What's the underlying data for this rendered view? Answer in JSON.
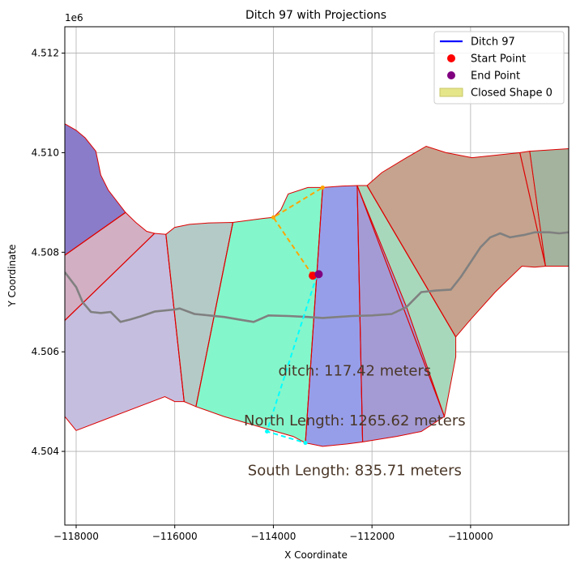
{
  "chart_data": {
    "type": "map",
    "title": "Ditch 97 with Projections",
    "xlabel": "X Coordinate",
    "ylabel": "Y Coordinate",
    "y_offset_label": "1e6",
    "xlim": [
      -118230,
      -108010
    ],
    "ylim": [
      4502520,
      4512530
    ],
    "x_ticks": [
      {
        "value": -118000,
        "label": "−118000"
      },
      {
        "value": -116000,
        "label": "−116000"
      },
      {
        "value": -114000,
        "label": "−114000"
      },
      {
        "value": -112000,
        "label": "−112000"
      },
      {
        "value": -110000,
        "label": "−110000"
      }
    ],
    "y_ticks": [
      {
        "value": 4504000,
        "label": "4.504"
      },
      {
        "value": 4506000,
        "label": "4.506"
      },
      {
        "value": 4508000,
        "label": "4.508"
      },
      {
        "value": 4510000,
        "label": "4.510"
      },
      {
        "value": 4512000,
        "label": "4.512"
      }
    ],
    "grid": true,
    "legend_position": "top-right",
    "legend": [
      {
        "label": "Ditch 97",
        "kind": "line",
        "color": "#0000ff"
      },
      {
        "label": "Start Point",
        "kind": "point",
        "color": "#ff0000"
      },
      {
        "label": "End Point",
        "kind": "point",
        "color": "#800080"
      },
      {
        "label": "Closed Shape 0",
        "kind": "patch",
        "color": "#e5e58a"
      }
    ],
    "regions": [
      {
        "color": "#8a7cc8",
        "points": [
          [
            -118230,
            4510580
          ],
          [
            -118000,
            4510450
          ],
          [
            -117820,
            4510300
          ],
          [
            -117600,
            4510030
          ],
          [
            -117500,
            4509550
          ],
          [
            -117350,
            4509250
          ],
          [
            -117000,
            4508800
          ],
          [
            -118230,
            4507940
          ]
        ]
      },
      {
        "color": "#d2afc3",
        "points": [
          [
            -118230,
            4507940
          ],
          [
            -117000,
            4508800
          ],
          [
            -116790,
            4508600
          ],
          [
            -116570,
            4508420
          ],
          [
            -116410,
            4508380
          ],
          [
            -118230,
            4506630
          ]
        ]
      },
      {
        "color": "#c6bedf",
        "points": [
          [
            -118230,
            4506630
          ],
          [
            -116410,
            4508380
          ],
          [
            -116180,
            4508360
          ],
          [
            -115810,
            4505000
          ],
          [
            -116000,
            4505000
          ],
          [
            -116200,
            4505100
          ],
          [
            -118000,
            4504420
          ],
          [
            -118230,
            4504700
          ]
        ]
      },
      {
        "color": "#b4cac7",
        "points": [
          [
            -116180,
            4508360
          ],
          [
            -116000,
            4508500
          ],
          [
            -115700,
            4508560
          ],
          [
            -115300,
            4508590
          ],
          [
            -114820,
            4508600
          ],
          [
            -115570,
            4504900
          ],
          [
            -115810,
            4505000
          ]
        ]
      },
      {
        "color": "#84f6cb",
        "points": [
          [
            -114820,
            4508600
          ],
          [
            -114200,
            4508680
          ],
          [
            -114000,
            4508700
          ],
          [
            -113850,
            4508850
          ],
          [
            -113700,
            4509170
          ],
          [
            -113300,
            4509300
          ],
          [
            -113000,
            4509300
          ],
          [
            -113120,
            4507530
          ],
          [
            -113350,
            4504170
          ],
          [
            -113600,
            4504300
          ],
          [
            -115000,
            4504700
          ],
          [
            -115570,
            4504900
          ]
        ]
      },
      {
        "color": "#979ee9",
        "points": [
          [
            -113000,
            4509300
          ],
          [
            -112600,
            4509330
          ],
          [
            -112300,
            4509340
          ],
          [
            -112190,
            4504190
          ],
          [
            -112500,
            4504150
          ],
          [
            -113000,
            4504100
          ],
          [
            -113350,
            4504170
          ],
          [
            -113120,
            4507530
          ]
        ]
      },
      {
        "color": "#a49bd5",
        "points": [
          [
            -112300,
            4509340
          ],
          [
            -111300,
            4506900
          ],
          [
            -110530,
            4504700
          ],
          [
            -111000,
            4504400
          ],
          [
            -111500,
            4504300
          ],
          [
            -112190,
            4504190
          ]
        ]
      },
      {
        "color": "#a8d8bb",
        "points": [
          [
            -112300,
            4509340
          ],
          [
            -112100,
            4509340
          ],
          [
            -110300,
            4506300
          ],
          [
            -110300,
            4505900
          ],
          [
            -110530,
            4504700
          ],
          [
            -111300,
            4506900
          ]
        ]
      },
      {
        "color": "#c6a38e",
        "points": [
          [
            -112100,
            4509340
          ],
          [
            -111800,
            4509600
          ],
          [
            -111300,
            4509900
          ],
          [
            -110900,
            4510130
          ],
          [
            -110500,
            4510000
          ],
          [
            -109970,
            4509900
          ],
          [
            -109000,
            4510000
          ],
          [
            -108800,
            4510030
          ],
          [
            -108480,
            4507720
          ],
          [
            -108700,
            4507700
          ],
          [
            -108960,
            4507720
          ],
          [
            -109500,
            4507200
          ],
          [
            -110000,
            4506650
          ],
          [
            -110300,
            4506300
          ]
        ]
      },
      {
        "color": "#a4b39d",
        "points": [
          [
            -108800,
            4510030
          ],
          [
            -108010,
            4510080
          ],
          [
            -108010,
            4507720
          ],
          [
            -108480,
            4507720
          ]
        ]
      }
    ],
    "dividers": [
      [
        [
          -118230,
          4507940
        ],
        [
          -117000,
          4508800
        ]
      ],
      [
        [
          -118230,
          4506630
        ],
        [
          -116410,
          4508380
        ]
      ],
      [
        [
          -116180,
          4508360
        ],
        [
          -115810,
          4505000
        ]
      ],
      [
        [
          -114820,
          4508600
        ],
        [
          -115570,
          4504900
        ]
      ],
      [
        [
          -113000,
          4509300
        ],
        [
          -113350,
          4504170
        ]
      ],
      [
        [
          -112300,
          4509340
        ],
        [
          -112190,
          4504190
        ]
      ],
      [
        [
          -112300,
          4509340
        ],
        [
          -110530,
          4504700
        ]
      ],
      [
        [
          -112100,
          4509340
        ],
        [
          -110300,
          4506300
        ]
      ],
      [
        [
          -109000,
          4510000
        ],
        [
          -108480,
          4507720
        ]
      ]
    ],
    "road": [
      [
        -118230,
        4507600
      ],
      [
        -118000,
        4507300
      ],
      [
        -117870,
        4507000
      ],
      [
        -117700,
        4506800
      ],
      [
        -117500,
        4506780
      ],
      [
        -117300,
        4506800
      ],
      [
        -117100,
        4506600
      ],
      [
        -116900,
        4506650
      ],
      [
        -116700,
        4506710
      ],
      [
        -116400,
        4506810
      ],
      [
        -116000,
        4506850
      ],
      [
        -115900,
        4506870
      ],
      [
        -115600,
        4506760
      ],
      [
        -115300,
        4506730
      ],
      [
        -115000,
        4506700
      ],
      [
        -114700,
        4506650
      ],
      [
        -114400,
        4506600
      ],
      [
        -114100,
        4506730
      ],
      [
        -113700,
        4506720
      ],
      [
        -113300,
        4506700
      ],
      [
        -113000,
        4506680
      ],
      [
        -112700,
        4506700
      ],
      [
        -112400,
        4506720
      ],
      [
        -112000,
        4506730
      ],
      [
        -111600,
        4506760
      ],
      [
        -111300,
        4506900
      ],
      [
        -111000,
        4507200
      ],
      [
        -110700,
        4507230
      ],
      [
        -110400,
        4507250
      ],
      [
        -110200,
        4507500
      ],
      [
        -110000,
        4507800
      ],
      [
        -109800,
        4508100
      ],
      [
        -109600,
        4508300
      ],
      [
        -109400,
        4508380
      ],
      [
        -109200,
        4508300
      ],
      [
        -108900,
        4508350
      ],
      [
        -108700,
        4508400
      ],
      [
        -108400,
        4508400
      ],
      [
        -108200,
        4508380
      ],
      [
        -108010,
        4508400
      ]
    ],
    "ditch_segment": [
      [
        -113200,
        4507530
      ],
      [
        -113080,
        4507560
      ]
    ],
    "start_point": [
      -113200,
      4507530
    ],
    "end_point": [
      -113080,
      4507560
    ],
    "north_projection": [
      [
        -113200,
        4507530
      ],
      [
        -114000,
        4508700
      ],
      [
        -113000,
        4509300
      ]
    ],
    "south_projection": [
      [
        -113120,
        4507530
      ],
      [
        -114130,
        4504400
      ],
      [
        -113350,
        4504170
      ]
    ],
    "annotations": [
      {
        "text": "ditch: 117.42 meters",
        "x": -112350,
        "y": 4505520
      },
      {
        "text": "North Length: 1265.62 meters",
        "x": -112350,
        "y": 4504520
      },
      {
        "text": "South Length: 835.71 meters",
        "x": -112350,
        "y": 4503520
      }
    ]
  }
}
